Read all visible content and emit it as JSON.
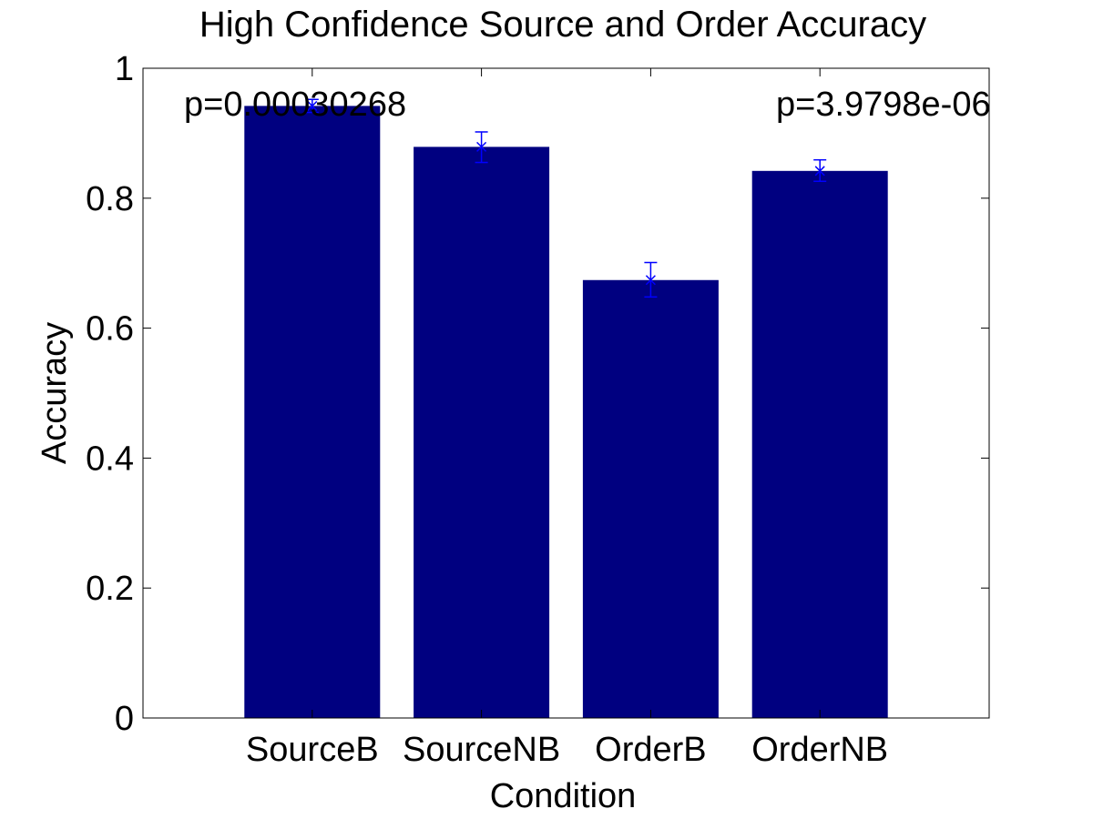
{
  "chart_data": {
    "type": "bar",
    "title": "High Confidence Source and Order Accuracy",
    "xlabel": "Condition",
    "ylabel": "Accuracy",
    "categories": [
      "SourceB",
      "SourceNB",
      "OrderB",
      "OrderNB"
    ],
    "values": [
      0.942,
      0.879,
      0.674,
      0.842
    ],
    "error_low": [
      0.932,
      0.855,
      0.648,
      0.826
    ],
    "error_high": [
      0.952,
      0.902,
      0.701,
      0.859
    ],
    "ylim": [
      0,
      1
    ],
    "yticks": [
      "0",
      "0.2",
      "0.4",
      "0.6",
      "0.8",
      "1"
    ],
    "grid": false,
    "annotations": [
      "p=0.00030268",
      "p=3.9798e-06"
    ],
    "colors": {
      "bar": "#000080",
      "error_bar": "#0000ff",
      "axes": "#000000",
      "background": "#ffffff"
    }
  }
}
